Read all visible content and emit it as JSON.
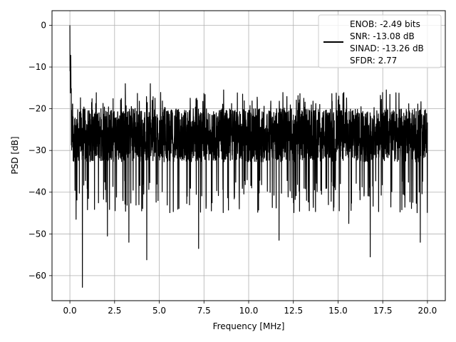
{
  "chart_data": {
    "type": "line",
    "title": "",
    "xlabel": "Frequency [MHz]",
    "ylabel": "PSD [dB]",
    "xlim": [
      -1.0,
      21.0
    ],
    "ylim": [
      -66,
      3.5
    ],
    "xticks": [
      0.0,
      2.5,
      5.0,
      7.5,
      10.0,
      12.5,
      15.0,
      17.5,
      20.0
    ],
    "xtick_labels": [
      "0.0",
      "2.5",
      "5.0",
      "7.5",
      "10.0",
      "12.5",
      "15.0",
      "17.5",
      "20.0"
    ],
    "yticks": [
      0,
      -10,
      -20,
      -30,
      -40,
      -50,
      -60
    ],
    "ytick_labels": [
      "0",
      "−10",
      "−20",
      "−30",
      "−40",
      "−50",
      "−60"
    ],
    "grid": true,
    "legend_position": "top-right",
    "legend_lines": [
      "ENOB: -2.49 bits",
      "SNR: -13.08 dB",
      "SINAD: -13.26 dB",
      "SFDR: 2.77"
    ],
    "series": [
      {
        "color": "#000000",
        "peak": {
          "x": 0.0,
          "y": 0.0
        },
        "noise_floor_upper": -20.0,
        "noise_floor_lower": -35.0,
        "x_range": [
          0.0,
          20.0
        ],
        "dips": [
          {
            "x": 0.35,
            "y": -46.5
          },
          {
            "x": 0.7,
            "y": -62.8
          },
          {
            "x": 2.1,
            "y": -50.5
          },
          {
            "x": 3.3,
            "y": -52.0
          },
          {
            "x": 4.3,
            "y": -56.2
          },
          {
            "x": 7.2,
            "y": -53.5
          },
          {
            "x": 11.7,
            "y": -51.5
          },
          {
            "x": 15.6,
            "y": -47.5
          },
          {
            "x": 16.8,
            "y": -55.5
          },
          {
            "x": 19.6,
            "y": -52.0
          }
        ],
        "spikes": [
          {
            "x": 0.05,
            "y": -9.5
          },
          {
            "x": 3.1,
            "y": -14.0
          },
          {
            "x": 4.5,
            "y": -14.0
          },
          {
            "x": 8.6,
            "y": -15.5
          },
          {
            "x": 17.7,
            "y": -15.5
          }
        ]
      }
    ]
  }
}
